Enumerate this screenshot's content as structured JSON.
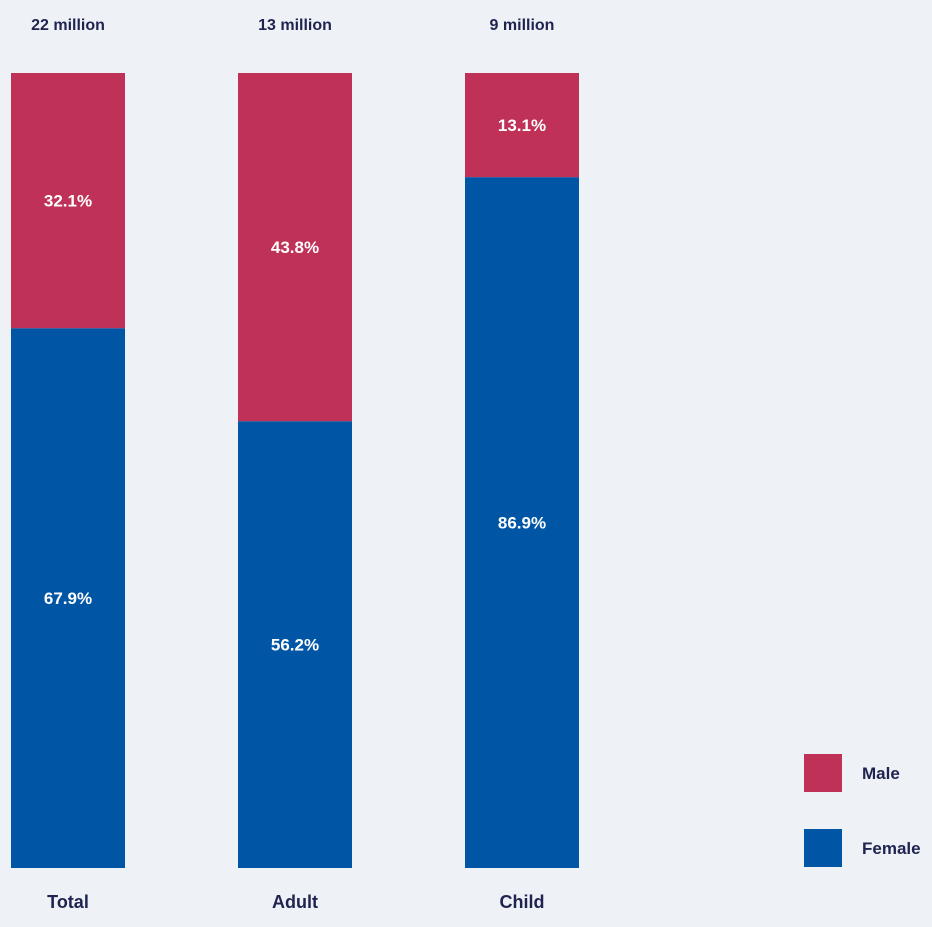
{
  "chart_data": {
    "type": "bar",
    "stacked": true,
    "normalized_percent": true,
    "categories": [
      "Total",
      "Adult",
      "Child"
    ],
    "category_totals": [
      "22 million",
      "13 million",
      "9 million"
    ],
    "series": [
      {
        "name": "Female",
        "values": [
          67.9,
          56.2,
          86.9
        ],
        "labels": [
          "67.9%",
          "56.2%",
          "86.9%"
        ],
        "color": "#0055a5"
      },
      {
        "name": "Male",
        "values": [
          32.1,
          43.8,
          13.1
        ],
        "labels": [
          "32.1%",
          "43.8%",
          "13.1%"
        ],
        "color": "#bf3156"
      }
    ],
    "ylim": [
      0,
      100
    ],
    "grid": false,
    "legend_position": "bottom-right",
    "legend_order": [
      "Male",
      "Female"
    ],
    "title": "",
    "xlabel": "",
    "ylabel": ""
  },
  "background_color": "#eef1f6",
  "text_color": "#1f2350"
}
